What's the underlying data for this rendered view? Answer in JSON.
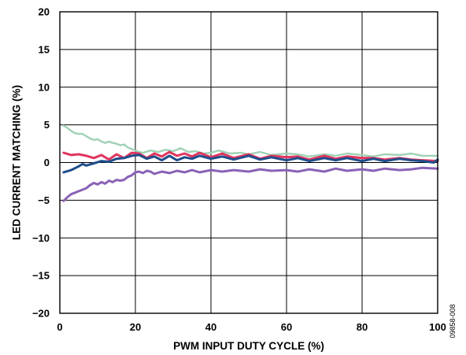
{
  "chart_data": {
    "type": "line",
    "xlabel": "PWM INPUT DUTY CYCLE (%)",
    "ylabel": "LED CURRENT MATCHING (%)",
    "xlim": [
      0,
      100
    ],
    "ylim": [
      -20,
      20
    ],
    "x_ticks": [
      "0",
      "20",
      "40",
      "60",
      "80",
      "100"
    ],
    "y_ticks": [
      "20",
      "15",
      "10",
      "5",
      "0",
      "−5",
      "−10",
      "−15",
      "−20"
    ],
    "grid": true,
    "figure_code": "09858-008",
    "series": [
      {
        "color": "#9fd1b5",
        "x": [
          1,
          2,
          3,
          4,
          5,
          6,
          7,
          8,
          9,
          10,
          11,
          12,
          13,
          14,
          15,
          16,
          17,
          18,
          19,
          20,
          21,
          22,
          24,
          26,
          28,
          30,
          32,
          34,
          36,
          38,
          40,
          42,
          45,
          48,
          50,
          53,
          56,
          60,
          63,
          66,
          70,
          73,
          76,
          80,
          83,
          86,
          90,
          93,
          96,
          100
        ],
        "y": [
          4.9,
          4.6,
          4.2,
          3.9,
          3.8,
          3.8,
          3.5,
          3.2,
          3.0,
          3.1,
          2.8,
          2.6,
          2.8,
          2.6,
          2.5,
          2.3,
          2.4,
          2.0,
          1.8,
          1.6,
          1.4,
          1.3,
          1.6,
          1.4,
          1.7,
          1.5,
          1.9,
          1.4,
          1.5,
          1.2,
          1.3,
          1.6,
          1.2,
          1.3,
          1.1,
          1.4,
          1.0,
          1.2,
          1.1,
          0.8,
          1.1,
          0.9,
          1.2,
          1.0,
          0.8,
          1.1,
          1.0,
          1.2,
          0.9,
          0.9
        ]
      },
      {
        "color": "#e0355e",
        "x": [
          1,
          3,
          5,
          7,
          9,
          11,
          13,
          15,
          17,
          19,
          21,
          23,
          25,
          27,
          29,
          31,
          33,
          35,
          37,
          40,
          43,
          46,
          50,
          53,
          56,
          60,
          63,
          66,
          70,
          73,
          76,
          80,
          83,
          86,
          90,
          93,
          96,
          100
        ],
        "y": [
          1.3,
          1.0,
          1.1,
          0.9,
          0.6,
          1.0,
          0.4,
          1.1,
          0.6,
          1.3,
          1.2,
          0.6,
          1.2,
          0.8,
          1.4,
          0.9,
          1.2,
          0.8,
          1.3,
          0.7,
          1.2,
          0.6,
          1.1,
          0.5,
          0.9,
          0.7,
          0.8,
          0.4,
          0.9,
          0.5,
          0.8,
          0.6,
          0.6,
          0.4,
          0.6,
          0.4,
          0.3,
          0.2
        ]
      },
      {
        "color": "#1f4e8c",
        "x": [
          1,
          3,
          5,
          6,
          7,
          9,
          11,
          13,
          15,
          17,
          19,
          21,
          23,
          25,
          27,
          29,
          31,
          33,
          35,
          37,
          40,
          43,
          46,
          50,
          53,
          56,
          60,
          63,
          66,
          70,
          73,
          76,
          80,
          83,
          86,
          90,
          93,
          96,
          99,
          100
        ],
        "y": [
          -1.3,
          -1.0,
          -0.5,
          -0.2,
          -0.4,
          -0.1,
          0.2,
          0.1,
          0.5,
          0.6,
          0.9,
          1.0,
          0.5,
          0.8,
          0.3,
          0.9,
          0.3,
          0.7,
          0.5,
          0.9,
          0.5,
          0.8,
          0.4,
          0.9,
          0.4,
          0.7,
          0.3,
          0.6,
          0.2,
          0.6,
          0.3,
          0.6,
          0.2,
          0.5,
          0.2,
          0.5,
          0.3,
          0.2,
          0.0,
          0.4
        ]
      },
      {
        "color": "#8a62b6",
        "x": [
          1,
          2,
          3,
          4,
          5,
          6,
          7,
          8,
          9,
          10,
          11,
          12,
          13,
          14,
          15,
          16,
          17,
          18,
          19,
          20,
          21,
          22,
          23,
          24,
          25,
          27,
          29,
          31,
          33,
          35,
          37,
          40,
          43,
          46,
          50,
          53,
          56,
          60,
          63,
          66,
          70,
          73,
          76,
          80,
          83,
          86,
          90,
          93,
          96,
          100
        ],
        "y": [
          -5.1,
          -4.6,
          -4.2,
          -4.0,
          -3.8,
          -3.6,
          -3.4,
          -3.0,
          -2.7,
          -2.9,
          -2.6,
          -2.8,
          -2.4,
          -2.6,
          -2.3,
          -2.4,
          -2.3,
          -1.9,
          -1.7,
          -1.3,
          -1.2,
          -1.4,
          -1.1,
          -1.2,
          -1.5,
          -1.2,
          -1.4,
          -1.1,
          -1.3,
          -1.0,
          -1.3,
          -1.0,
          -1.2,
          -1.0,
          -1.2,
          -0.9,
          -1.1,
          -1.0,
          -1.2,
          -0.9,
          -1.2,
          -0.8,
          -1.1,
          -0.9,
          -1.1,
          -0.8,
          -1.0,
          -0.9,
          -0.7,
          -0.8
        ]
      }
    ]
  }
}
